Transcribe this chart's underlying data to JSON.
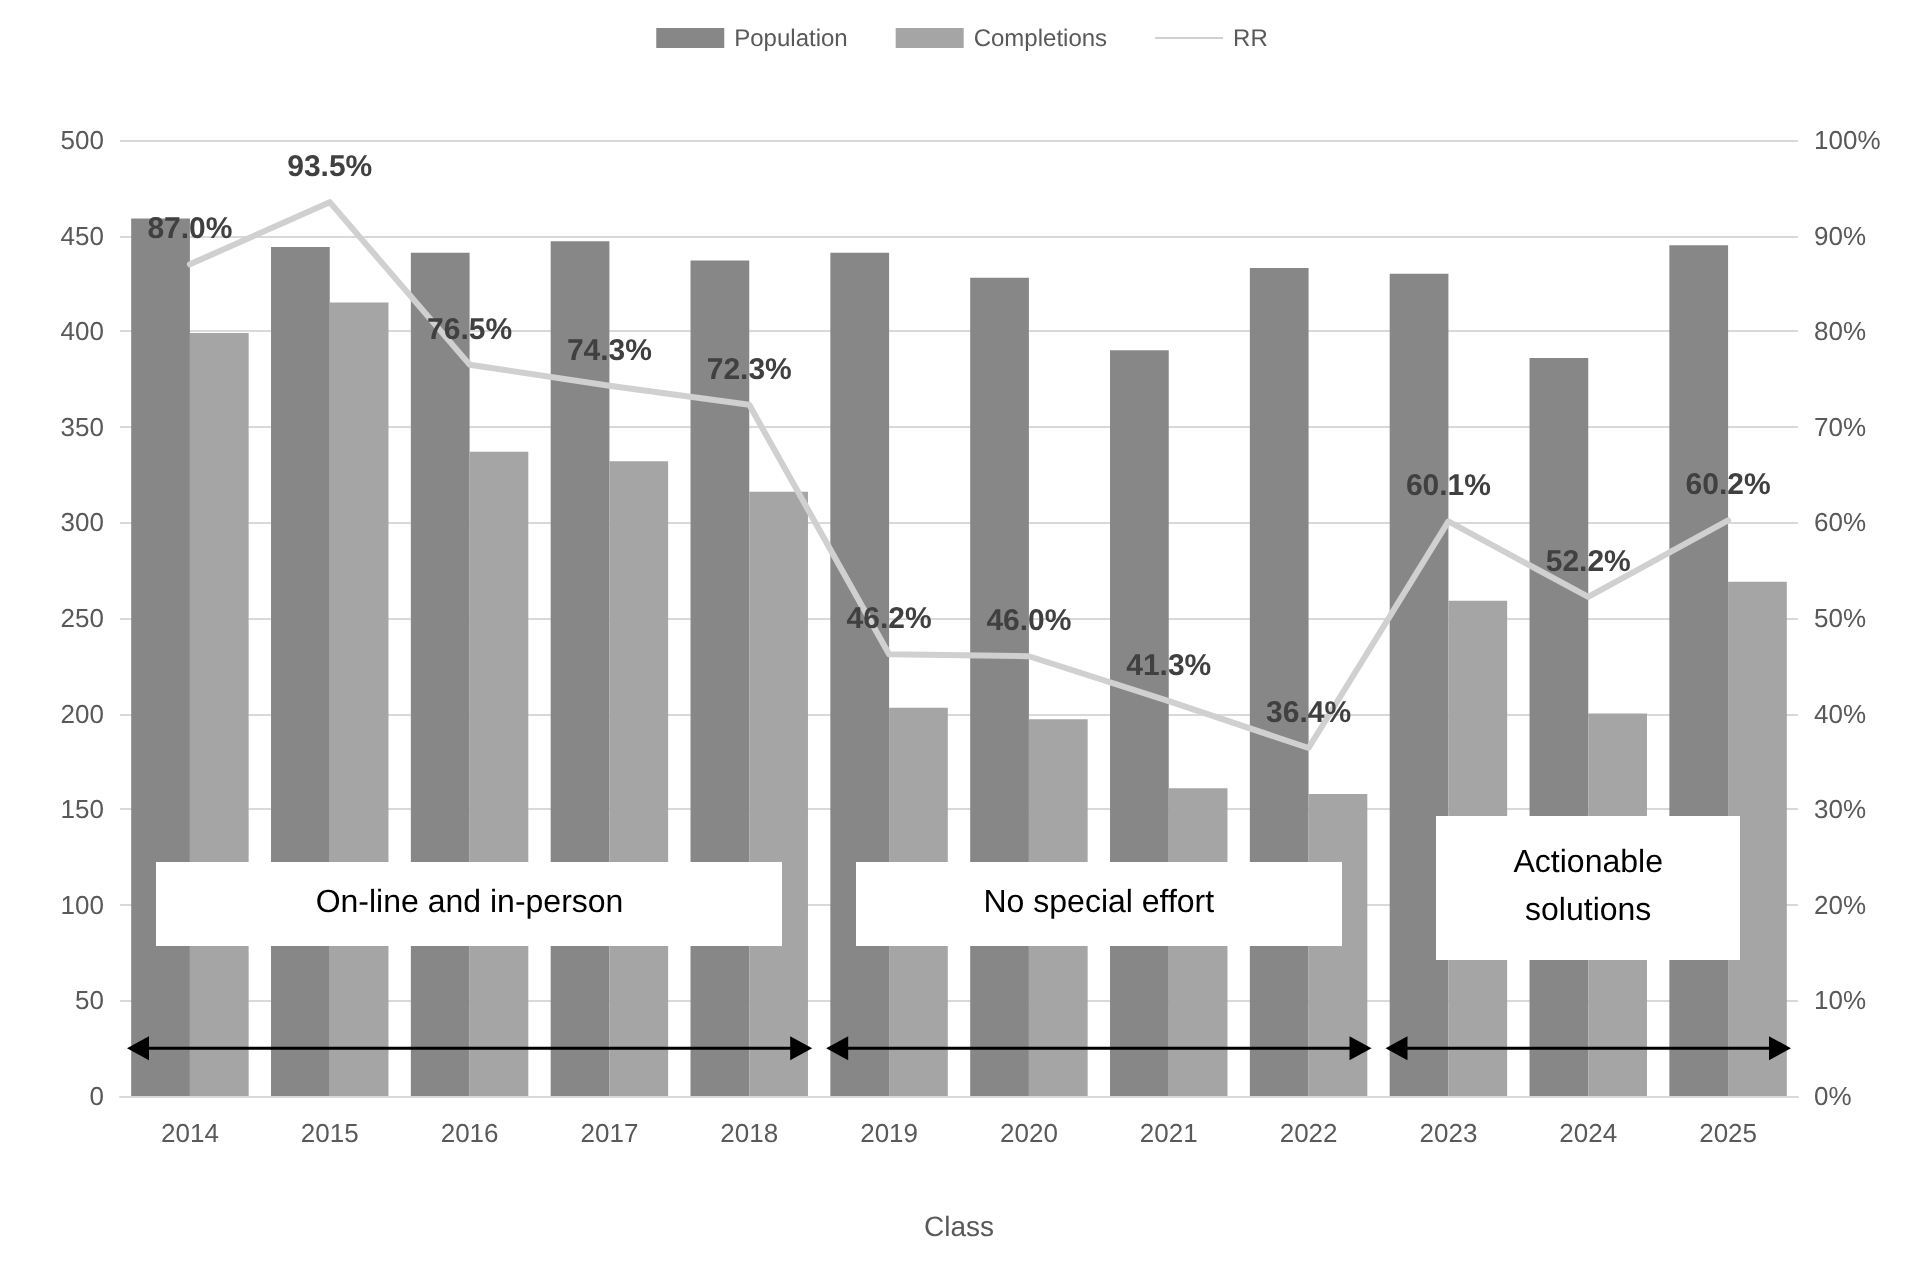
{
  "chart_data": {
    "type": "bar",
    "xlabel": "Class",
    "categories": [
      "2014",
      "2015",
      "2016",
      "2017",
      "2018",
      "2019",
      "2020",
      "2021",
      "2022",
      "2023",
      "2024",
      "2025"
    ],
    "series": [
      {
        "name": "Population",
        "color": "#878787",
        "values": [
          459,
          444,
          441,
          447,
          437,
          441,
          428,
          390,
          433,
          430,
          386,
          445
        ]
      },
      {
        "name": "Completions",
        "color": "#a5a5a5",
        "values": [
          399,
          415,
          337,
          332,
          316,
          203,
          197,
          161,
          158,
          259,
          200,
          269
        ]
      },
      {
        "name": "RR",
        "type": "line",
        "axis": "y2",
        "color": "#d0d0d0",
        "marker": "none",
        "values": [
          87.0,
          93.5,
          76.5,
          74.3,
          72.3,
          46.2,
          46.0,
          41.3,
          36.4,
          60.1,
          52.2,
          60.2
        ],
        "value_labels": [
          "87.0%",
          "93.5%",
          "76.5%",
          "74.3%",
          "72.3%",
          "46.2%",
          "46.0%",
          "41.3%",
          "36.4%",
          "60.1%",
          "52.2%",
          "60.2%"
        ]
      }
    ],
    "ylim": [
      0,
      500
    ],
    "yticks": [
      0,
      50,
      100,
      150,
      200,
      250,
      300,
      350,
      400,
      450,
      500
    ],
    "y2lim": [
      0,
      100
    ],
    "y2ticks": [
      {
        "value": 0,
        "label": "0%"
      },
      {
        "value": 10,
        "label": "10%"
      },
      {
        "value": 20,
        "label": "20%"
      },
      {
        "value": 30,
        "label": "30%"
      },
      {
        "value": 40,
        "label": "40%"
      },
      {
        "value": 50,
        "label": "50%"
      },
      {
        "value": 60,
        "label": "60%"
      },
      {
        "value": 70,
        "label": "70%"
      },
      {
        "value": 80,
        "label": "80%"
      },
      {
        "value": 90,
        "label": "90%"
      },
      {
        "value": 100,
        "label": "100%"
      }
    ],
    "annotations": [
      "On-line and in-person",
      "No special effort",
      "Actionable solutions"
    ],
    "grid": "y",
    "legend": "top"
  }
}
